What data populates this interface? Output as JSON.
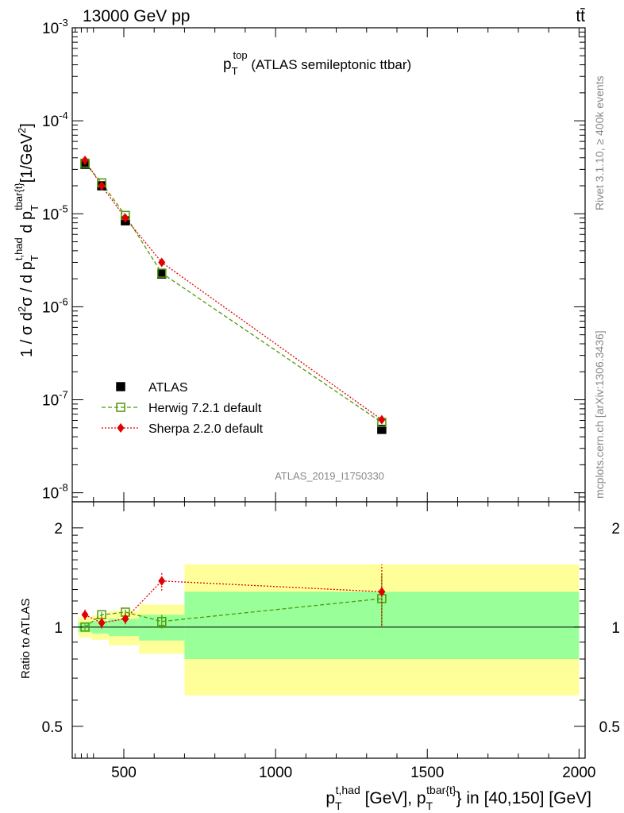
{
  "header": {
    "energy_label": "13000 GeV pp",
    "process_label": "tt̄",
    "plot_title_main": "p",
    "plot_title_sub": "T",
    "plot_title_sup": "top",
    "plot_title_rest": " (ATLAS semileptonic ttbar)",
    "analysis_id": "ATLAS_2019_I1750330",
    "rivet_label": "Rivet 3.1.10, ≥ 400k events",
    "mcplots_label": "mcplots.cern.ch [arXiv:1306.3436]"
  },
  "axes": {
    "ylabel_main": "1 / σ d²σ / d p_T^{t,had} d p_T^{tbar{t}} [1/GeV²]",
    "ylabel_ratio": "Ratio to ATLAS",
    "xlabel": "p_T^{t,had} [GeV], p_T^{tbar{t}} in [40,150] [GeV]",
    "main_yticks": [
      "10",
      "10",
      "10",
      "10",
      "10",
      "10"
    ],
    "main_ytick_exps": [
      "-3",
      "-4",
      "-5",
      "-6",
      "-7",
      "-8"
    ],
    "ratio_yticks": [
      "2",
      "1",
      "0.5"
    ],
    "xticks": [
      "500",
      "1000",
      "1500",
      "2000"
    ]
  },
  "legend": {
    "items": [
      {
        "label": "ATLAS",
        "color": "#000000"
      },
      {
        "label": "Herwig 7.2.1 default",
        "color": "#4e9a06"
      },
      {
        "label": "Sherpa 2.2.0 default",
        "color": "#e00000"
      }
    ]
  },
  "chart_data": [
    {
      "type": "scatter",
      "panel": "main",
      "yscale": "log",
      "xlim": [
        330,
        2020
      ],
      "ylim": [
        8e-09,
        0.001
      ],
      "series": [
        {
          "name": "ATLAS",
          "color": "#000000",
          "x": [
            372,
            427,
            505,
            625,
            1350
          ],
          "y": [
            3.4e-05,
            2e-05,
            8.4e-06,
            2.25e-06,
            4.8e-08
          ]
        },
        {
          "name": "Herwig 7.2.1 default",
          "color": "#4e9a06",
          "x": [
            372,
            427,
            505,
            625,
            1350
          ],
          "y": [
            3.5e-05,
            2.15e-05,
            9.6e-06,
            2.3e-06,
            5.7e-08
          ]
        },
        {
          "name": "Sherpa 2.2.0 default",
          "color": "#e00000",
          "x": [
            372,
            427,
            505,
            625,
            1350
          ],
          "y": [
            3.75e-05,
            2e-05,
            9e-06,
            3e-06,
            6.1e-08
          ]
        }
      ]
    },
    {
      "type": "scatter",
      "panel": "ratio",
      "yscale": "log",
      "xlim": [
        330,
        2020
      ],
      "ylim": [
        0.4,
        2.4
      ],
      "bands": [
        {
          "x0": 350,
          "x1": 395,
          "green": [
            0.965,
            1.035
          ],
          "yellow": [
            0.93,
            1.07
          ]
        },
        {
          "x0": 395,
          "x1": 450,
          "green": [
            0.955,
            1.045
          ],
          "yellow": [
            0.915,
            1.085
          ]
        },
        {
          "x0": 450,
          "x1": 550,
          "green": [
            0.94,
            1.06
          ],
          "yellow": [
            0.88,
            1.12
          ]
        },
        {
          "x0": 550,
          "x1": 700,
          "green": [
            0.91,
            1.09
          ],
          "yellow": [
            0.83,
            1.17
          ]
        },
        {
          "x0": 700,
          "x1": 2000,
          "green": [
            0.8,
            1.28
          ],
          "yellow": [
            0.62,
            1.55
          ]
        }
      ],
      "series": [
        {
          "name": "Herwig 7.2.1 default",
          "color": "#4e9a06",
          "x": [
            372,
            427,
            505,
            625,
            1350
          ],
          "y": [
            1.0,
            1.09,
            1.11,
            1.04,
            1.22
          ],
          "err": [
            0.02,
            0.02,
            0.02,
            0.05,
            0.22
          ]
        },
        {
          "name": "Sherpa 2.2.0 default",
          "color": "#e00000",
          "x": [
            372,
            427,
            505,
            625,
            1350
          ],
          "y": [
            1.09,
            1.03,
            1.06,
            1.38,
            1.28
          ],
          "err": [
            0.04,
            0.04,
            0.04,
            0.09,
            0.27
          ]
        }
      ]
    }
  ]
}
